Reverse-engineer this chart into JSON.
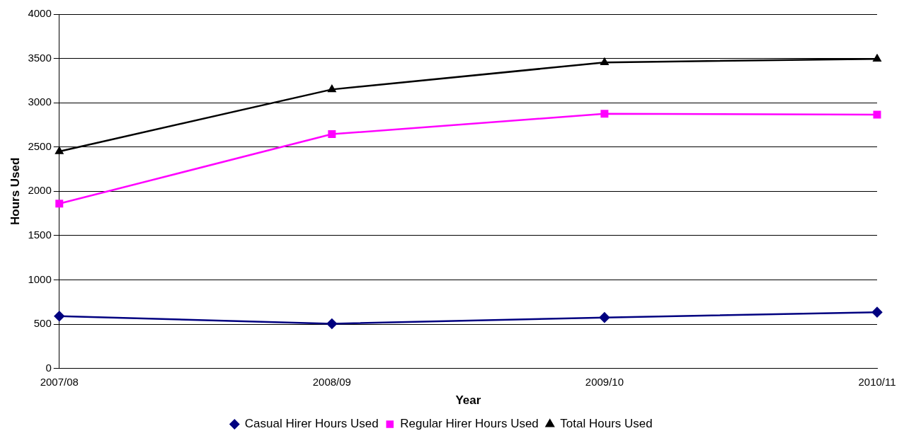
{
  "chart_data": {
    "type": "line",
    "xlabel": "Year",
    "ylabel": "Hours Used",
    "categories": [
      "2007/08",
      "2008/09",
      "2009/10",
      "2010/11"
    ],
    "series": [
      {
        "name": "Casual Hirer Hours Used",
        "color": "#000080",
        "marker": "diamond",
        "values": [
          590,
          505,
          575,
          635
        ]
      },
      {
        "name": "Regular Hirer Hours Used",
        "color": "#ff00ff",
        "marker": "square",
        "values": [
          1860,
          2645,
          2875,
          2865
        ]
      },
      {
        "name": "Total Hours Used",
        "color": "#000000",
        "marker": "triangle",
        "values": [
          2450,
          3150,
          3455,
          3495
        ]
      }
    ],
    "ylim": [
      0,
      4000
    ],
    "yticks": [
      0,
      500,
      1000,
      1500,
      2000,
      2500,
      3000,
      3500,
      4000
    ],
    "grid": "y",
    "legend": "bottom",
    "line_style": "solid"
  }
}
